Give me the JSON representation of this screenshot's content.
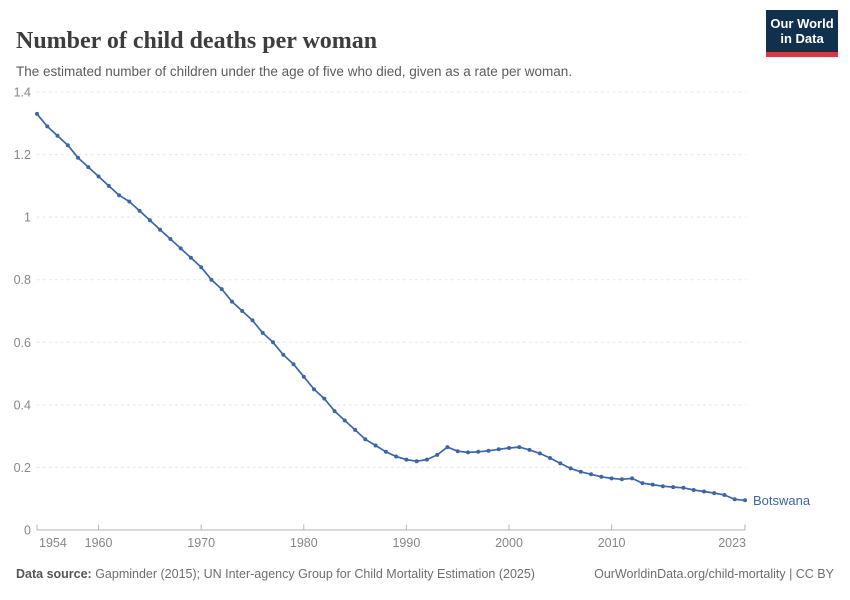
{
  "header": {
    "title": "Number of child deaths per woman",
    "subtitle": "The estimated number of children under the age of five who died, given as a rate per woman.",
    "logo": {
      "line1": "Our World",
      "line2": "in Data",
      "bg_color": "#10304e",
      "accent_color": "#d63b43"
    }
  },
  "footer": {
    "source_label": "Data source:",
    "source_text": " Gapminder (2015); UN Inter-agency Group for Child Mortality Estimation (2025)",
    "link_text": "OurWorldinData.org/child-mortality | CC BY"
  },
  "chart_data": {
    "type": "line",
    "title": "Number of child deaths per woman",
    "xlabel": "",
    "ylabel": "",
    "grid": true,
    "legend_position": "end-of-line-label",
    "marker": "circle",
    "ylim": [
      0,
      1.4
    ],
    "yticks": [
      0,
      0.2,
      0.4,
      0.6,
      0.8,
      1,
      1.2,
      1.4
    ],
    "ytick_labels": [
      "0",
      "0.2",
      "0.4",
      "0.6",
      "0.8",
      "1",
      "1.2",
      "1.4"
    ],
    "xlim": [
      1954,
      2023
    ],
    "xticks": [
      1954,
      1960,
      1970,
      1980,
      1990,
      2000,
      2010,
      2023
    ],
    "x": [
      1954,
      1955,
      1956,
      1957,
      1958,
      1959,
      1960,
      1961,
      1962,
      1963,
      1964,
      1965,
      1966,
      1967,
      1968,
      1969,
      1970,
      1971,
      1972,
      1973,
      1974,
      1975,
      1976,
      1977,
      1978,
      1979,
      1980,
      1981,
      1982,
      1983,
      1984,
      1985,
      1986,
      1987,
      1988,
      1989,
      1990,
      1991,
      1992,
      1993,
      1994,
      1995,
      1996,
      1997,
      1998,
      1999,
      2000,
      2001,
      2002,
      2003,
      2004,
      2005,
      2006,
      2007,
      2008,
      2009,
      2010,
      2011,
      2012,
      2013,
      2014,
      2015,
      2016,
      2017,
      2018,
      2019,
      2020,
      2021,
      2022,
      2023
    ],
    "series": [
      {
        "name": "Botswana",
        "color": "#3e66a5",
        "values": [
          1.33,
          1.29,
          1.26,
          1.23,
          1.19,
          1.16,
          1.13,
          1.1,
          1.07,
          1.05,
          1.02,
          0.99,
          0.96,
          0.93,
          0.9,
          0.87,
          0.84,
          0.8,
          0.77,
          0.73,
          0.7,
          0.67,
          0.63,
          0.6,
          0.56,
          0.53,
          0.49,
          0.45,
          0.42,
          0.38,
          0.35,
          0.32,
          0.29,
          0.27,
          0.25,
          0.235,
          0.225,
          0.22,
          0.225,
          0.24,
          0.265,
          0.252,
          0.248,
          0.25,
          0.253,
          0.258,
          0.262,
          0.265,
          0.256,
          0.245,
          0.23,
          0.213,
          0.197,
          0.186,
          0.178,
          0.17,
          0.165,
          0.162,
          0.165,
          0.15,
          0.145,
          0.14,
          0.137,
          0.135,
          0.128,
          0.123,
          0.118,
          0.112,
          0.098,
          0.095
        ]
      }
    ],
    "colors": {
      "gridline": "#e3e3e3",
      "axis": "#b5b5b5",
      "tick_label": "#878787"
    }
  }
}
